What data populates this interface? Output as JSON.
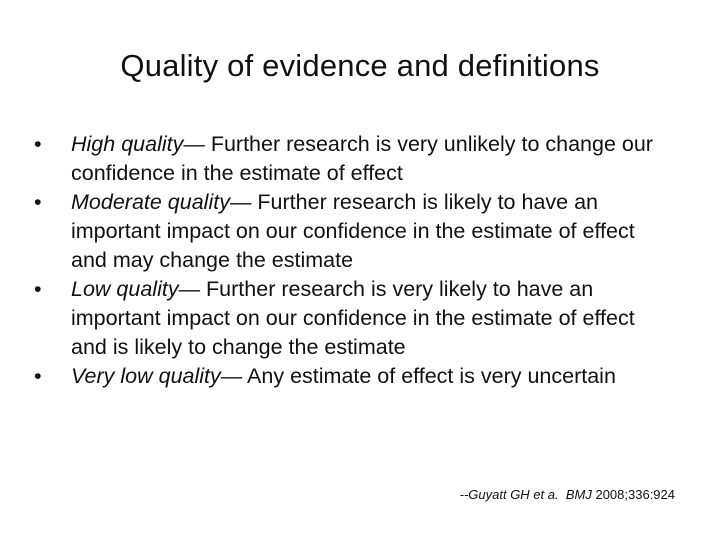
{
  "slide": {
    "title": "Quality of evidence and definitions",
    "bullet_glyph": "•",
    "bullets": [
      {
        "term": "High quality",
        "dash": "—",
        "text": " Further research is very unlikely to change our confidence in the estimate of effect"
      },
      {
        "term": "Moderate quality",
        "dash": "—",
        "text": " Further research is likely to have an important impact on our confidence in the estimate of effect and may change the estimate"
      },
      {
        "term": "Low quality",
        "dash": "—",
        "text": " Further research is very likely to have an important impact on our confidence in the estimate of effect and is likely to change the estimate"
      },
      {
        "term": "Very low quality",
        "dash": "—",
        "text": " Any estimate of effect is very uncertain"
      }
    ],
    "citation": {
      "authors": "--Guyatt GH et a.",
      "journal": "BMJ",
      "ref": "2008;336:924"
    }
  }
}
